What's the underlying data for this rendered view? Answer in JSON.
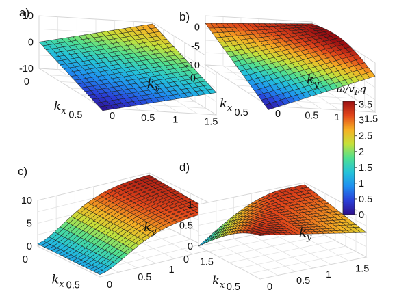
{
  "chart_data": [
    {
      "panel_label": "a)",
      "type": "surface",
      "xlabel": "k",
      "xlabel_sub": "x",
      "ylabel": "k",
      "ylabel_sub": "y",
      "x_range": [
        0,
        0.6
      ],
      "y_range": [
        0,
        1.8
      ],
      "z_range": [
        -10,
        10
      ],
      "x_ticks": [
        "0",
        "0.5"
      ],
      "y_ticks": [
        "0",
        "0.5",
        "1",
        "1.5"
      ],
      "z_ticks": [
        "10",
        "0",
        "-10"
      ],
      "corner_values": {
        "x0_y0": 0,
        "x0_y1.8": 9.5,
        "x0.6_y0": -11,
        "x0.6_y1.8": 2
      },
      "grid": true
    },
    {
      "panel_label": "b)",
      "type": "surface",
      "xlabel": "k",
      "xlabel_sub": "x",
      "ylabel": "k",
      "ylabel_sub": "y",
      "x_range": [
        0,
        0.6
      ],
      "y_range": [
        0,
        1.8
      ],
      "z_range": [
        -10,
        3
      ],
      "x_ticks": [
        "0",
        "0.5"
      ],
      "y_ticks": [
        "0",
        "0.5",
        "1",
        "1.5"
      ],
      "z_ticks": [
        "0",
        "-5",
        "-10"
      ],
      "corner_values": {
        "x0_y0": 1,
        "x0_y1.8": 2,
        "x0.6_y0": -11,
        "x0.6_y1.8": -3
      },
      "grid": true
    },
    {
      "panel_label": "c)",
      "type": "surface",
      "xlabel": "k",
      "xlabel_sub": "x",
      "ylabel": "k",
      "ylabel_sub": "y",
      "x_range": [
        0,
        0.6
      ],
      "y_range": [
        0,
        1.8
      ],
      "z_range": [
        0,
        10
      ],
      "x_ticks": [
        "0",
        "0.5"
      ],
      "y_ticks": [
        "0",
        "0.5",
        "1",
        "1.5"
      ],
      "z_ticks": [
        "10",
        "5",
        "0"
      ],
      "corner_values": {
        "x0_y0": 0.5,
        "x0_y1.8": 9.5,
        "x0.6_y0": 0.5,
        "x0.6_y1.8": 8.5
      },
      "grid": true
    },
    {
      "panel_label": "d)",
      "type": "surface",
      "xlabel": "k",
      "xlabel_sub": "x",
      "ylabel": "k",
      "ylabel_sub": "y",
      "x_range": [
        0,
        0.6
      ],
      "y_range": [
        0,
        1.8
      ],
      "z_range": [
        0,
        1
      ],
      "x_ticks": [
        "0",
        "0.5"
      ],
      "y_ticks": [
        "0",
        "0.5",
        "1",
        "1.5"
      ],
      "z_ticks": [
        "1",
        "0.5",
        "0"
      ],
      "corner_values": {
        "x0_y0": 0,
        "x0_y1.8": 0.95,
        "x0.6_y0": 0.35,
        "x0.6_y1.8": 0.6
      },
      "grid": true
    }
  ],
  "colorbar": {
    "title": "ω/v",
    "title_sub": "F",
    "title_tail": "q",
    "range": [
      0,
      3.6
    ],
    "ticks": [
      "3.5",
      "3",
      "2.5",
      "2",
      "1.5",
      "1",
      "0.5",
      "0"
    ],
    "colormap": "jet-like",
    "colors": [
      "#2e0f8a",
      "#2a3fd8",
      "#1f8ff0",
      "#24c3d9",
      "#50e090",
      "#c6e13a",
      "#f6b024",
      "#e2461a",
      "#9a0f12"
    ]
  }
}
